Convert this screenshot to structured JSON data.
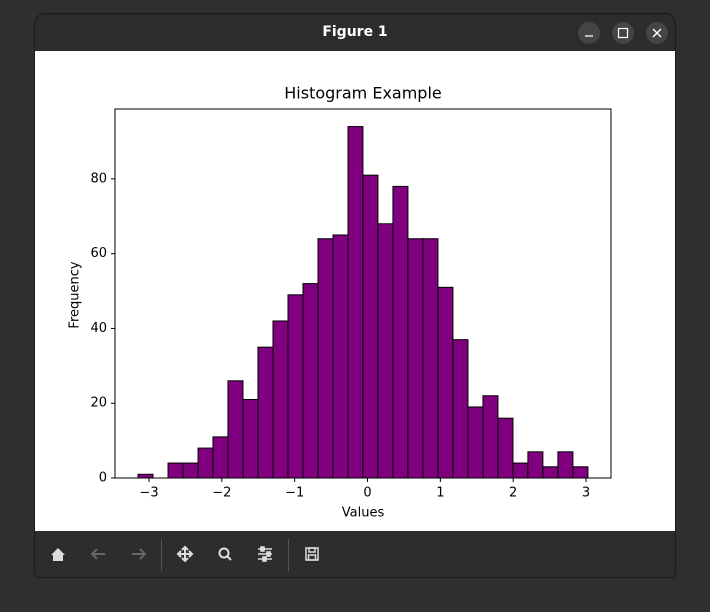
{
  "window": {
    "title": "Figure 1"
  },
  "chart_data": {
    "type": "histogram",
    "title": "Histogram Example",
    "x_label": "Values",
    "y_label": "Frequency",
    "bins": [
      -3.151,
      -2.945,
      -2.739,
      -2.533,
      -2.327,
      -2.122,
      -1.916,
      -1.71,
      -1.504,
      -1.298,
      -1.092,
      -0.886,
      -0.68,
      -0.474,
      -0.268,
      -0.063,
      0.143,
      0.349,
      0.555,
      0.761,
      0.967,
      1.173,
      1.379,
      1.585,
      1.791,
      1.997,
      2.202,
      2.408,
      2.614,
      2.82,
      3.026
    ],
    "values": [
      1,
      0,
      4,
      4,
      8,
      11,
      26,
      21,
      35,
      42,
      49,
      52,
      64,
      65,
      94,
      81,
      68,
      78,
      64,
      64,
      51,
      37,
      19,
      22,
      16,
      4,
      7,
      3,
      7,
      3
    ],
    "color": "#800080",
    "edgecolor": "#000000",
    "xlim": [
      -3.467,
      3.343
    ],
    "ylim": [
      0,
      98.7
    ],
    "xticks": [
      {
        "value": -3,
        "label": "−3"
      },
      {
        "value": -2,
        "label": "−2"
      },
      {
        "value": -1,
        "label": "−1"
      },
      0,
      1,
      2,
      3
    ],
    "yticks": [
      0,
      20,
      40,
      60,
      80
    ]
  }
}
